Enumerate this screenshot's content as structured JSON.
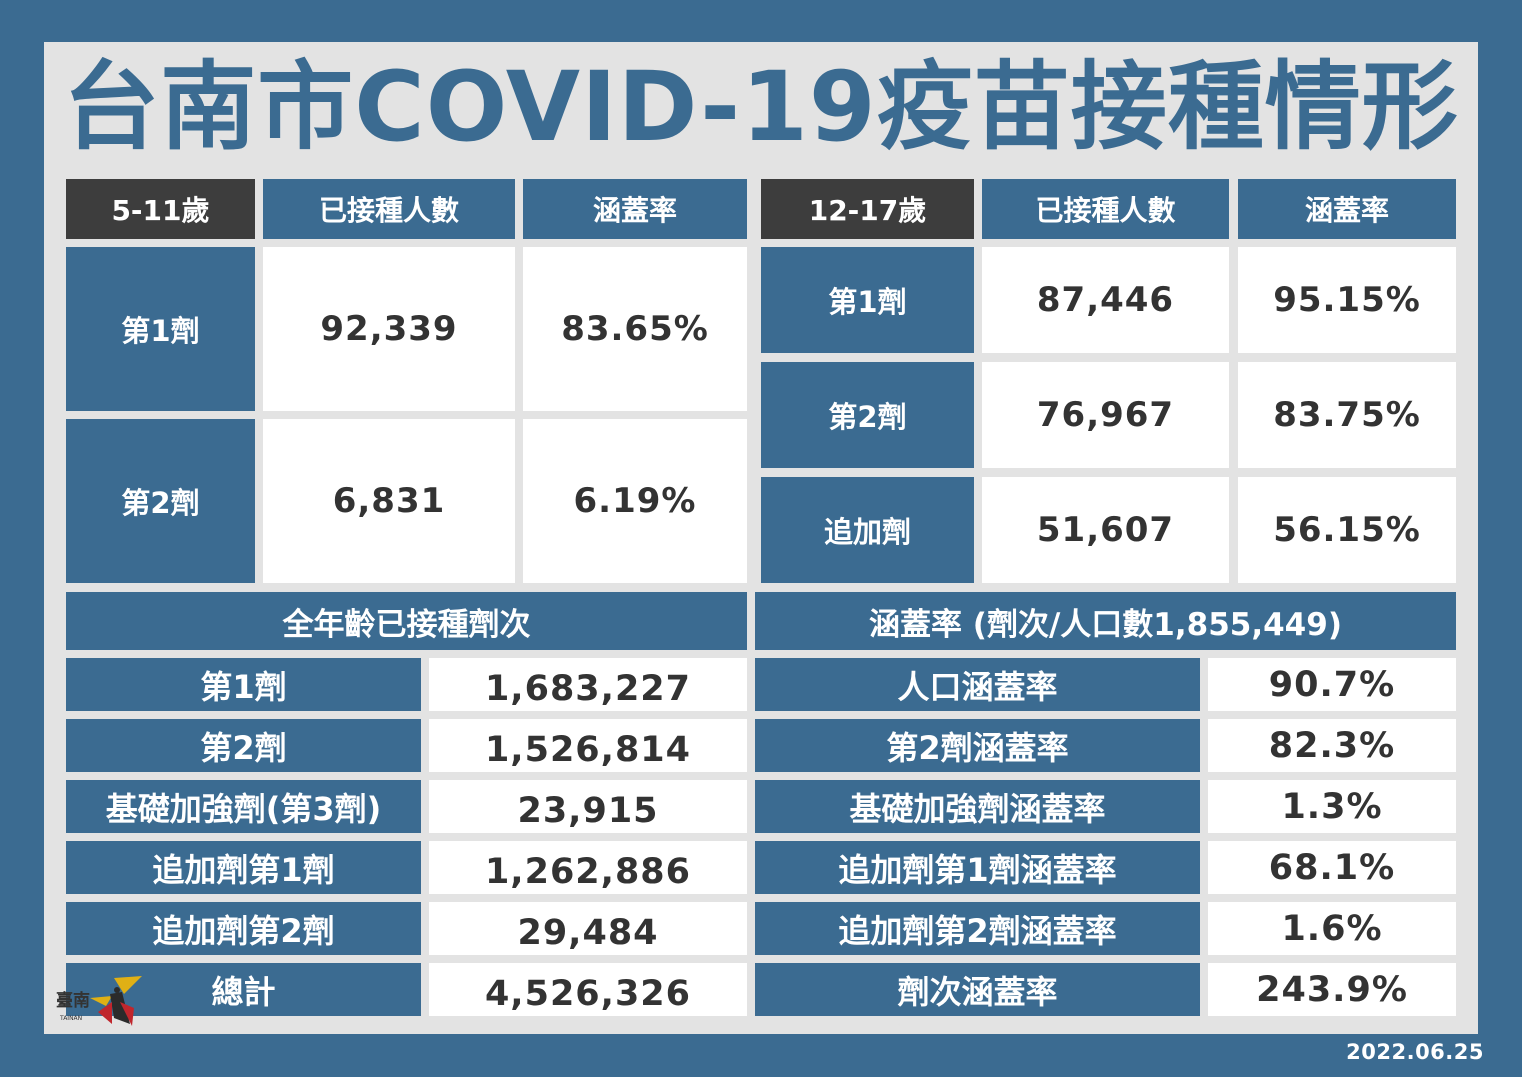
{
  "title": "台南市COVID-19疫苗接種情形",
  "date": "2022.06.25",
  "kids": {
    "age": "5-11歲",
    "col_count": "已接種人數",
    "col_rate": "涵蓋率",
    "rows": [
      {
        "label": "第1劑",
        "count": "92,339",
        "rate": "83.65%"
      },
      {
        "label": "第2劑",
        "count": "6,831",
        "rate": "6.19%"
      }
    ]
  },
  "teens": {
    "age": "12-17歲",
    "col_count": "已接種人數",
    "col_rate": "涵蓋率",
    "rows": [
      {
        "label": "第1劑",
        "count": "87,446",
        "rate": "95.15%"
      },
      {
        "label": "第2劑",
        "count": "76,967",
        "rate": "83.75%"
      },
      {
        "label": "追加劑",
        "count": "51,607",
        "rate": "56.15%"
      }
    ]
  },
  "all_ages": {
    "header": "全年齡已接種劑次",
    "rows": [
      {
        "label": "第1劑",
        "value": "1,683,227"
      },
      {
        "label": "第2劑",
        "value": "1,526,814"
      },
      {
        "label": "基礎加強劑(第3劑)",
        "value": "23,915"
      },
      {
        "label": "追加劑第1劑",
        "value": "1,262,886"
      },
      {
        "label": "追加劑第2劑",
        "value": "29,484"
      },
      {
        "label": "總計",
        "value": "4,526,326"
      }
    ]
  },
  "coverage": {
    "header": "涵蓋率 (劑次/人口數1,855,449)",
    "rows": [
      {
        "label": "人口涵蓋率",
        "value": "90.7%"
      },
      {
        "label": "第2劑涵蓋率",
        "value": "82.3%"
      },
      {
        "label": "基礎加強劑涵蓋率",
        "value": "1.3%"
      },
      {
        "label": "追加劑第1劑涵蓋率",
        "value": "68.1%"
      },
      {
        "label": "追加劑第2劑涵蓋率",
        "value": "1.6%"
      },
      {
        "label": "劑次涵蓋率",
        "value": "243.9%"
      }
    ]
  },
  "logo": {
    "text": "臺南",
    "subtext": "TAINAN"
  },
  "colors": {
    "primary": "#3b6b91",
    "dark_header": "#3d3d3d",
    "panel": "#e3e3e3",
    "cell": "#ffffff",
    "text": "#333333"
  }
}
